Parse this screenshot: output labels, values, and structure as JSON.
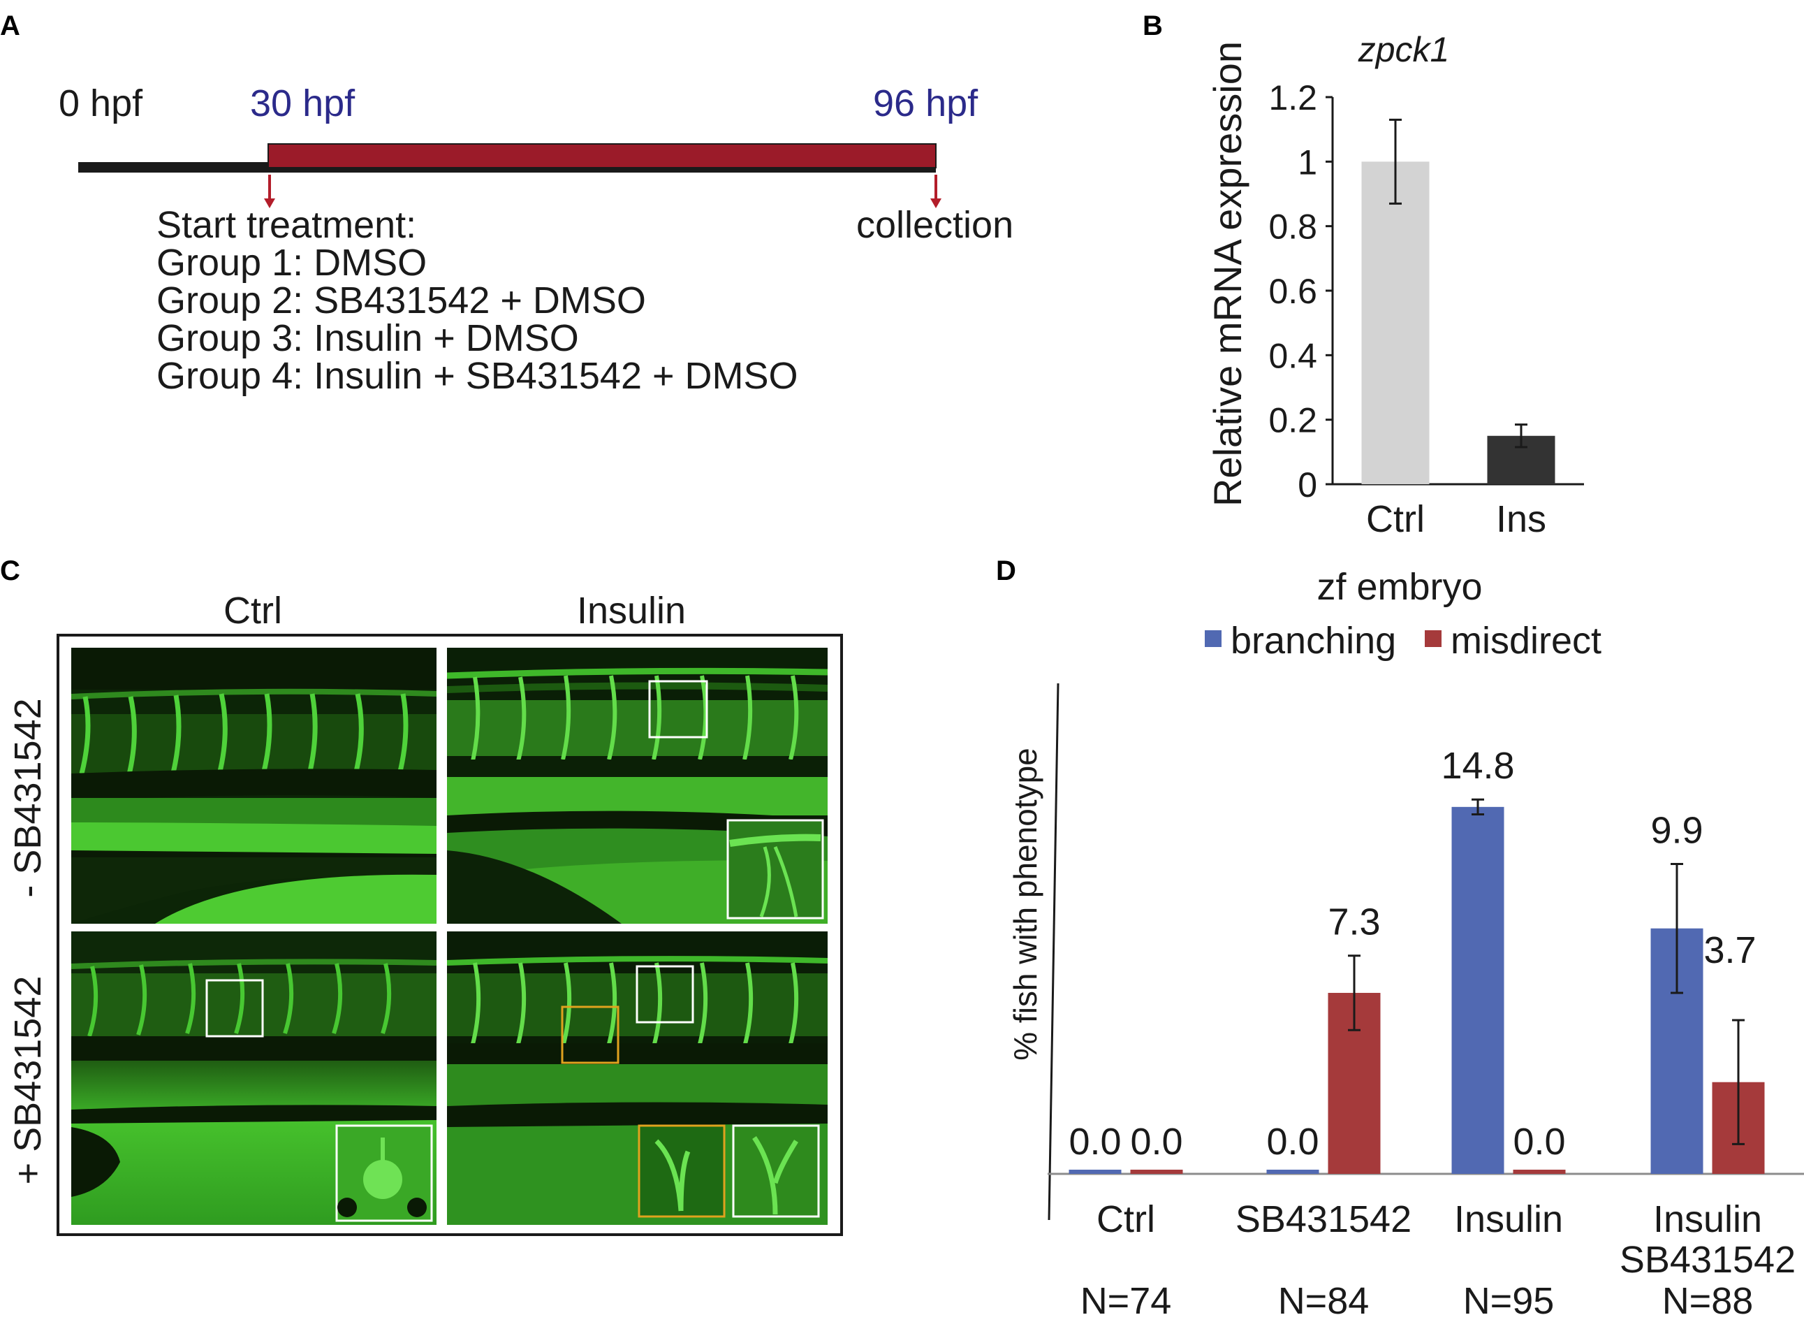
{
  "panels": {
    "A": {
      "letter": "A",
      "time_start": "0 hpf",
      "time_treat": "30 hpf",
      "time_end": "96 hpf",
      "start_label": "Start treatment:",
      "groups": [
        "Group 1: DMSO",
        "Group 2: SB431542 + DMSO",
        "Group 3: Insulin + DMSO",
        "Group 4: Insulin + SB431542 + DMSO"
      ],
      "collection_label": "collection",
      "colors": {
        "timeline": "#1a1a1a",
        "treatment": "#9b1b29",
        "hpf_label": "#2b2a8a",
        "arrow": "#b31d2a"
      }
    },
    "B": {
      "letter": "B"
    },
    "C": {
      "letter": "C",
      "col_labels": [
        "Ctrl",
        "Insulin"
      ],
      "row_labels": [
        "- SB431542",
        "+ SB431542"
      ],
      "colors": {
        "fluorescence": "#3fd02a",
        "background": "#0b1f06",
        "box_white": "#ffffff",
        "box_orange": "#e0a21e"
      }
    },
    "D": {
      "letter": "D"
    }
  },
  "chart_data": [
    {
      "id": "B",
      "type": "bar",
      "title": "zpck1",
      "ylabel": "Relative mRNA expression",
      "xlabel": "",
      "categories": [
        "Ctrl",
        "Ins"
      ],
      "values": [
        1.0,
        0.15
      ],
      "errors": [
        0.13,
        0.035
      ],
      "colors": [
        "#d3d3d3",
        "#333333"
      ],
      "ylim": [
        0,
        1.2
      ],
      "yticks": [
        "0",
        "0.2",
        "0.4",
        "0.6",
        "0.8",
        "1",
        "1.2"
      ],
      "grid": false
    },
    {
      "id": "D",
      "type": "bar",
      "title": "zf embryo",
      "ylabel": "% fish with phenotype",
      "xlabel": "",
      "categories": [
        "Ctrl",
        "SB431542",
        "Insulin",
        "Insulin\nSB431542"
      ],
      "counts": [
        "N=74",
        "N=84",
        "N=95",
        "N=88"
      ],
      "series": [
        {
          "name": "branching",
          "color": "#5169b2",
          "values": [
            0.0,
            0.0,
            14.8,
            9.9
          ],
          "errors": [
            0,
            0,
            0.3,
            2.6
          ],
          "labels": [
            "0.0",
            "0.0",
            "14.8",
            "9.9"
          ]
        },
        {
          "name": "misdirect",
          "color": "#a53a3b",
          "values": [
            0.0,
            7.3,
            0.0,
            3.7
          ],
          "errors": [
            0,
            1.5,
            0,
            2.5
          ],
          "labels": [
            "0.0",
            "7.3",
            "0.0",
            "3.7"
          ]
        }
      ],
      "ylim": [
        0,
        15.5
      ],
      "legend": "top",
      "grid": false
    }
  ]
}
